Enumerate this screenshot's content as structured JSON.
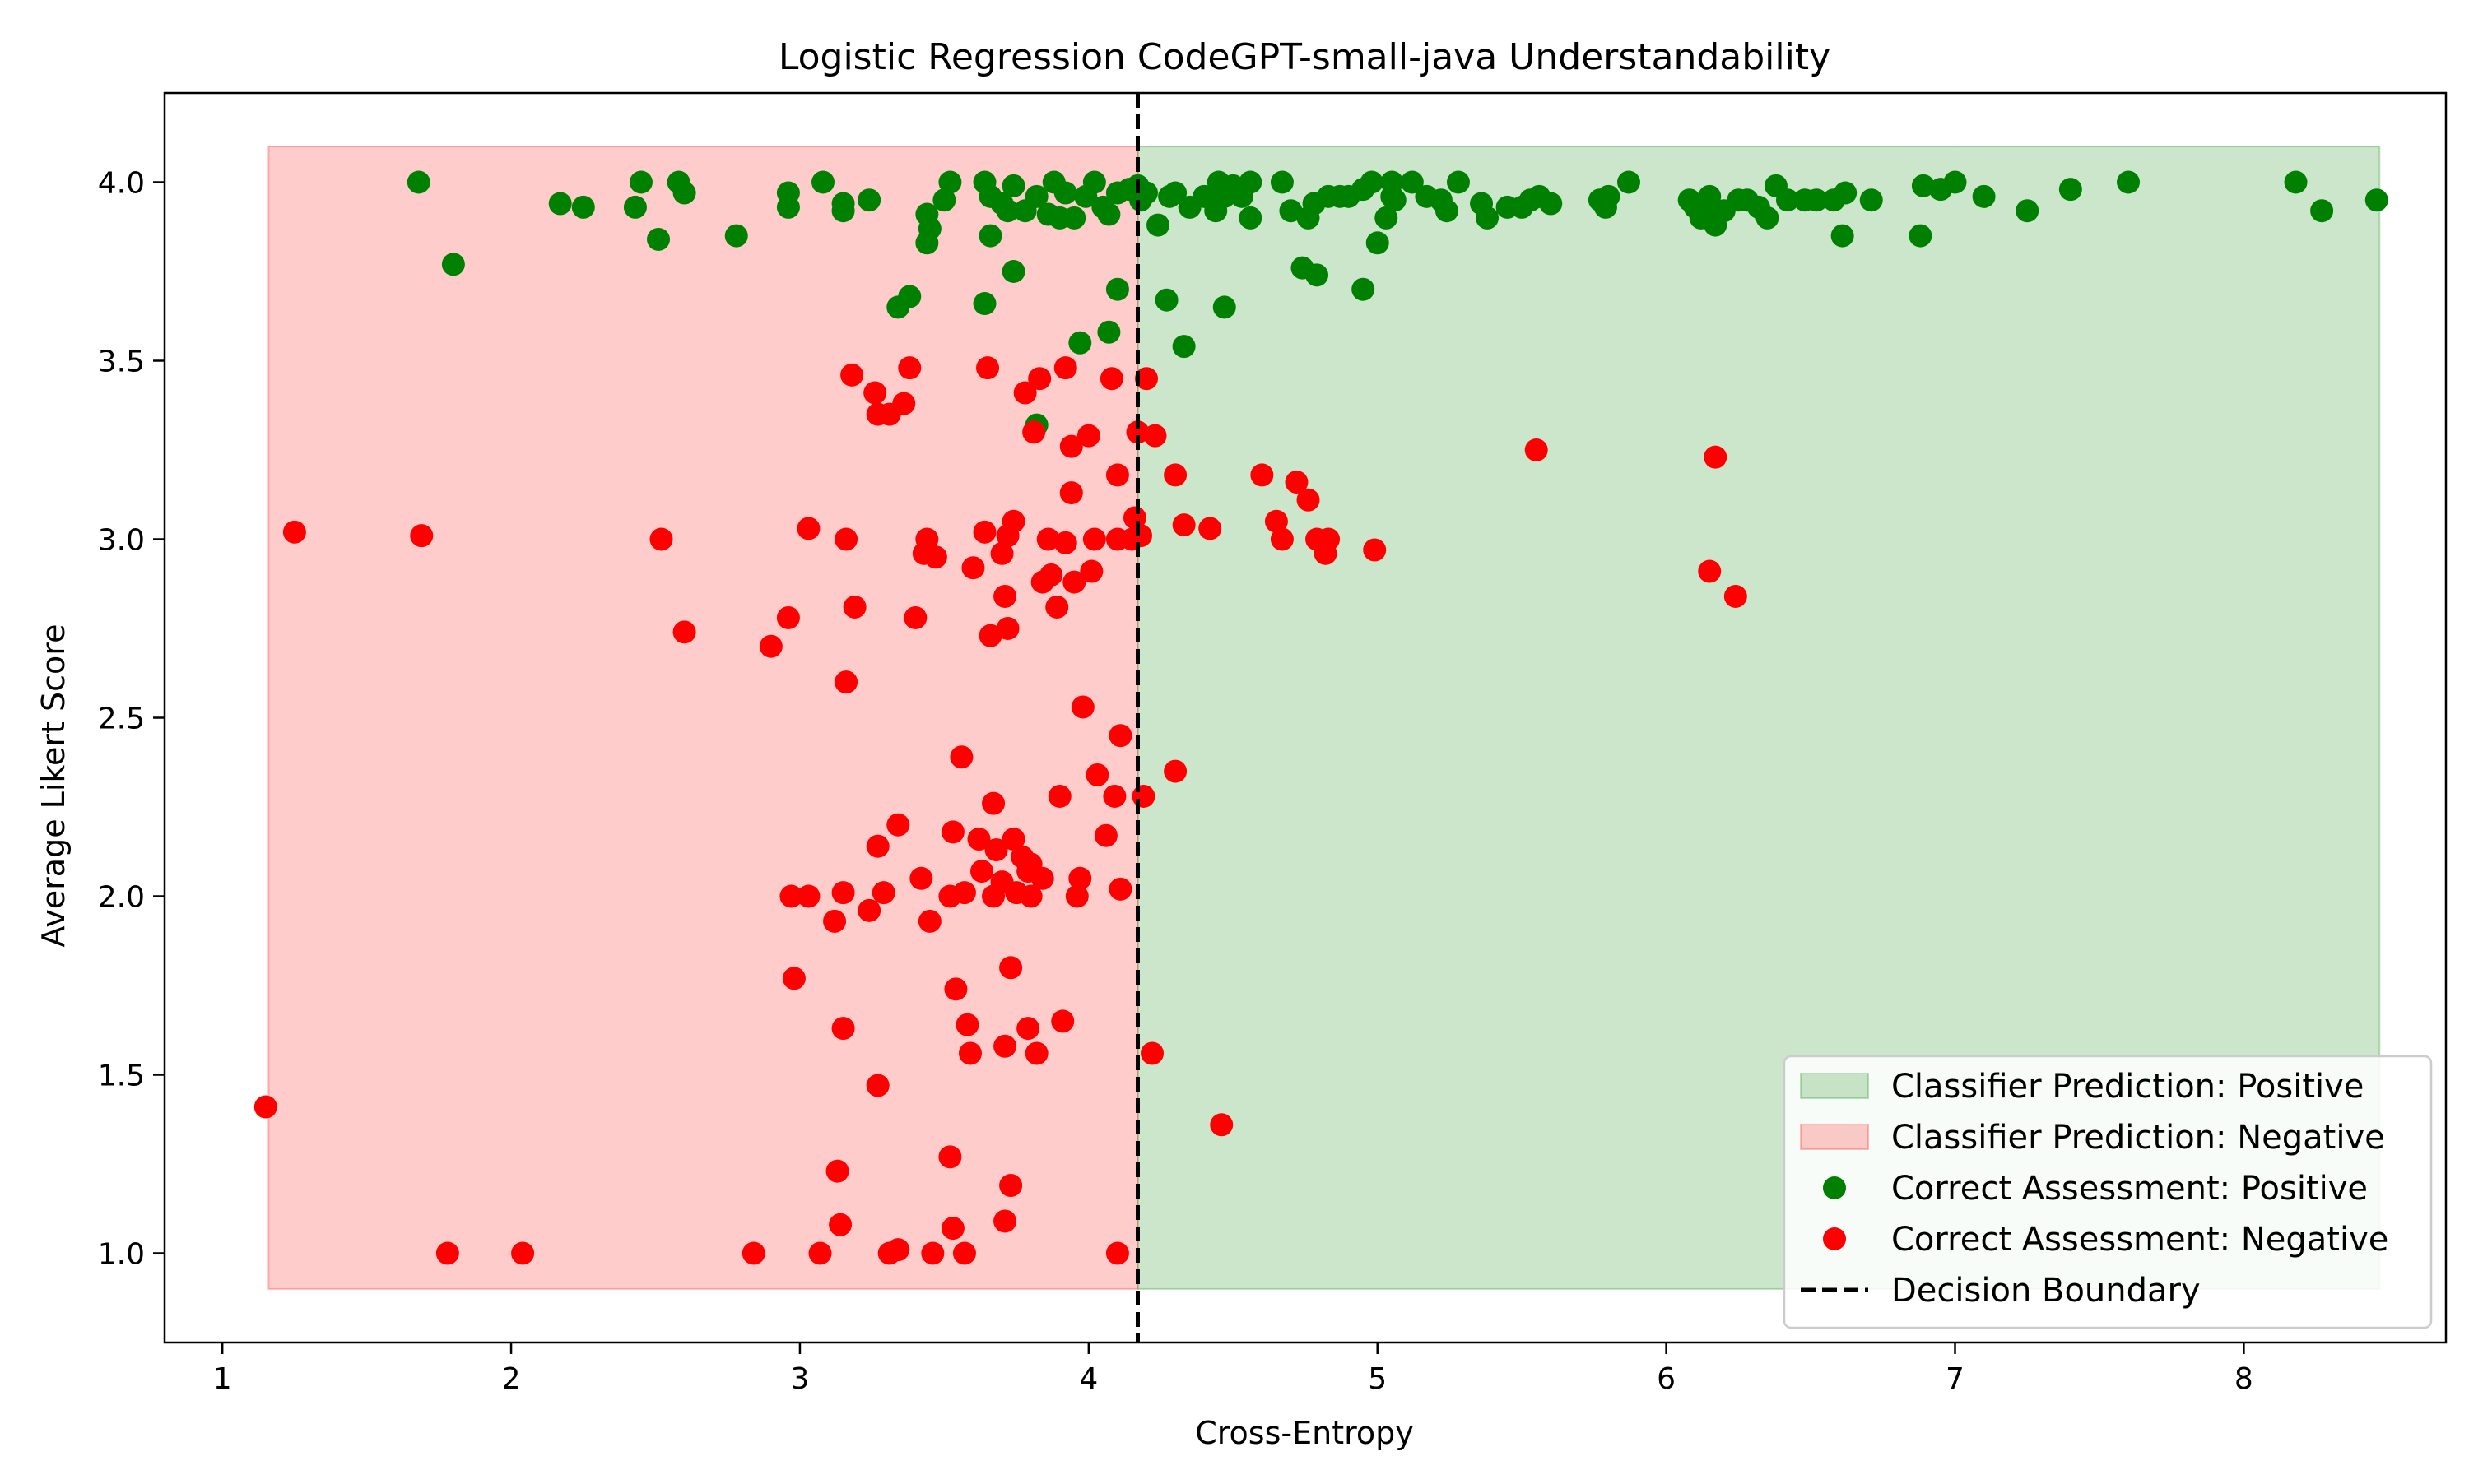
{
  "chart_data": {
    "type": "scatter",
    "title": "Logistic Regression CodeGPT-small-java Understandability",
    "xlabel": "Cross-Entropy",
    "ylabel": "Average Likert Score",
    "xlim": [
      0.8,
      8.7
    ],
    "ylim": [
      0.75,
      4.25
    ],
    "x_ticks": [
      1,
      2,
      3,
      4,
      5,
      6,
      7,
      8
    ],
    "x_tick_labels": [
      "1",
      "2",
      "3",
      "4",
      "5",
      "6",
      "7",
      "8"
    ],
    "y_ticks": [
      1.0,
      1.5,
      2.0,
      2.5,
      3.0,
      3.5,
      4.0
    ],
    "y_tick_labels": [
      "1.0",
      "1.5",
      "2.0",
      "2.5",
      "3.0",
      "3.5",
      "4.0"
    ],
    "grid": false,
    "legend_position": "bottom-right",
    "decision_boundary": 4.17,
    "regions": [
      {
        "name": "Classifier Prediction: Positive",
        "x_range": [
          4.17,
          8.47
        ],
        "y_range": [
          0.9,
          4.1
        ],
        "color": "#008000",
        "opacity": 0.2
      },
      {
        "name": "Classifier Prediction: Negative",
        "x_range": [
          1.16,
          4.17
        ],
        "y_range": [
          0.9,
          4.1
        ],
        "color": "#ff0000",
        "opacity": 0.2
      }
    ],
    "series": [
      {
        "name": "Correct Assessment: Positive",
        "color": "#008000",
        "points": [
          [
            1.68,
            4.0
          ],
          [
            1.8,
            3.77
          ],
          [
            2.17,
            3.94
          ],
          [
            2.25,
            3.93
          ],
          [
            2.43,
            3.93
          ],
          [
            2.45,
            4.0
          ],
          [
            2.51,
            3.84
          ],
          [
            2.58,
            4.0
          ],
          [
            2.6,
            3.97
          ],
          [
            2.78,
            3.85
          ],
          [
            2.96,
            3.97
          ],
          [
            2.96,
            3.93
          ],
          [
            3.08,
            4.0
          ],
          [
            3.15,
            3.94
          ],
          [
            3.15,
            3.92
          ],
          [
            3.24,
            3.95
          ],
          [
            3.34,
            3.65
          ],
          [
            3.38,
            3.68
          ],
          [
            3.44,
            3.91
          ],
          [
            3.44,
            3.83
          ],
          [
            3.45,
            3.87
          ],
          [
            3.5,
            3.95
          ],
          [
            3.52,
            4.0
          ],
          [
            3.64,
            4.0
          ],
          [
            3.64,
            3.66
          ],
          [
            3.66,
            3.85
          ],
          [
            3.66,
            3.96
          ],
          [
            3.7,
            3.94
          ],
          [
            3.72,
            3.92
          ],
          [
            3.74,
            3.99
          ],
          [
            3.74,
            3.75
          ],
          [
            3.78,
            3.92
          ],
          [
            3.82,
            3.96
          ],
          [
            3.82,
            3.32
          ],
          [
            3.86,
            3.91
          ],
          [
            3.88,
            4.0
          ],
          [
            3.9,
            3.9
          ],
          [
            3.92,
            3.97
          ],
          [
            3.95,
            3.9
          ],
          [
            3.97,
            3.55
          ],
          [
            3.99,
            3.96
          ],
          [
            4.02,
            4.0
          ],
          [
            4.05,
            3.93
          ],
          [
            4.07,
            3.58
          ],
          [
            4.07,
            3.91
          ],
          [
            4.1,
            3.97
          ],
          [
            4.1,
            3.7
          ],
          [
            4.14,
            3.98
          ],
          [
            4.17,
            3.99
          ],
          [
            4.18,
            3.95
          ],
          [
            4.2,
            3.97
          ],
          [
            4.24,
            3.88
          ],
          [
            4.27,
            3.67
          ],
          [
            4.28,
            3.96
          ],
          [
            4.3,
            3.97
          ],
          [
            4.33,
            3.54
          ],
          [
            4.35,
            3.93
          ],
          [
            4.4,
            3.96
          ],
          [
            4.44,
            3.92
          ],
          [
            4.45,
            4.0
          ],
          [
            4.47,
            3.96
          ],
          [
            4.47,
            3.65
          ],
          [
            4.5,
            3.99
          ],
          [
            4.53,
            3.96
          ],
          [
            4.56,
            3.9
          ],
          [
            4.56,
            4.0
          ],
          [
            4.67,
            4.0
          ],
          [
            4.7,
            3.92
          ],
          [
            4.74,
            3.76
          ],
          [
            4.76,
            3.9
          ],
          [
            4.78,
            3.94
          ],
          [
            4.79,
            3.74
          ],
          [
            4.83,
            3.96
          ],
          [
            4.87,
            3.96
          ],
          [
            4.9,
            3.96
          ],
          [
            4.95,
            3.7
          ],
          [
            4.95,
            3.98
          ],
          [
            4.98,
            4.0
          ],
          [
            5.0,
            3.83
          ],
          [
            5.03,
            3.9
          ],
          [
            5.05,
            3.96
          ],
          [
            5.06,
            3.95
          ],
          [
            5.05,
            4.0
          ],
          [
            5.12,
            4.0
          ],
          [
            5.17,
            3.96
          ],
          [
            5.22,
            3.95
          ],
          [
            5.24,
            3.92
          ],
          [
            5.28,
            4.0
          ],
          [
            5.36,
            3.94
          ],
          [
            5.38,
            3.9
          ],
          [
            5.45,
            3.93
          ],
          [
            5.5,
            3.93
          ],
          [
            5.53,
            3.95
          ],
          [
            5.56,
            3.96
          ],
          [
            5.6,
            3.94
          ],
          [
            5.77,
            3.95
          ],
          [
            5.79,
            3.93
          ],
          [
            5.8,
            3.96
          ],
          [
            5.87,
            4.0
          ],
          [
            6.08,
            3.95
          ],
          [
            6.1,
            3.93
          ],
          [
            6.12,
            3.9
          ],
          [
            6.15,
            3.93
          ],
          [
            6.15,
            3.96
          ],
          [
            6.17,
            3.88
          ],
          [
            6.2,
            3.92
          ],
          [
            6.25,
            3.95
          ],
          [
            6.28,
            3.95
          ],
          [
            6.32,
            3.93
          ],
          [
            6.35,
            3.9
          ],
          [
            6.38,
            3.99
          ],
          [
            6.42,
            3.95
          ],
          [
            6.48,
            3.95
          ],
          [
            6.52,
            3.95
          ],
          [
            6.58,
            3.95
          ],
          [
            6.61,
            3.85
          ],
          [
            6.62,
            3.97
          ],
          [
            6.71,
            3.95
          ],
          [
            6.88,
            3.85
          ],
          [
            6.89,
            3.99
          ],
          [
            6.95,
            3.98
          ],
          [
            7.0,
            4.0
          ],
          [
            7.1,
            3.96
          ],
          [
            7.25,
            3.92
          ],
          [
            7.4,
            3.98
          ],
          [
            7.6,
            4.0
          ],
          [
            8.18,
            4.0
          ],
          [
            8.27,
            3.92
          ],
          [
            8.46,
            3.95
          ]
        ]
      },
      {
        "name": "Correct Assessment: Negative",
        "color": "#ff0000",
        "points": [
          [
            1.15,
            1.41
          ],
          [
            1.25,
            3.02
          ],
          [
            1.69,
            3.01
          ],
          [
            1.78,
            1.0
          ],
          [
            2.04,
            1.0
          ],
          [
            2.52,
            3.0
          ],
          [
            2.6,
            2.74
          ],
          [
            2.84,
            1.0
          ],
          [
            2.9,
            2.7
          ],
          [
            2.96,
            2.78
          ],
          [
            2.97,
            2.0
          ],
          [
            2.98,
            1.77
          ],
          [
            3.03,
            3.03
          ],
          [
            3.03,
            2.0
          ],
          [
            3.07,
            1.0
          ],
          [
            3.12,
            1.93
          ],
          [
            3.13,
            1.23
          ],
          [
            3.14,
            1.08
          ],
          [
            3.15,
            1.63
          ],
          [
            3.15,
            2.01
          ],
          [
            3.16,
            3.0
          ],
          [
            3.16,
            2.6
          ],
          [
            3.18,
            3.46
          ],
          [
            3.19,
            2.81
          ],
          [
            3.24,
            1.96
          ],
          [
            3.26,
            3.41
          ],
          [
            3.27,
            1.47
          ],
          [
            3.27,
            3.35
          ],
          [
            3.27,
            2.14
          ],
          [
            3.29,
            2.01
          ],
          [
            3.31,
            3.35
          ],
          [
            3.31,
            1.0
          ],
          [
            3.34,
            2.2
          ],
          [
            3.34,
            1.01
          ],
          [
            3.36,
            3.38
          ],
          [
            3.38,
            3.48
          ],
          [
            3.4,
            2.78
          ],
          [
            3.42,
            2.05
          ],
          [
            3.43,
            2.96
          ],
          [
            3.44,
            3.0
          ],
          [
            3.45,
            1.93
          ],
          [
            3.46,
            1.0
          ],
          [
            3.47,
            2.95
          ],
          [
            3.52,
            1.27
          ],
          [
            3.52,
            2.0
          ],
          [
            3.53,
            1.07
          ],
          [
            3.53,
            2.18
          ],
          [
            3.54,
            1.74
          ],
          [
            3.56,
            2.39
          ],
          [
            3.57,
            1.0
          ],
          [
            3.57,
            2.01
          ],
          [
            3.58,
            1.64
          ],
          [
            3.59,
            1.56
          ],
          [
            3.6,
            2.92
          ],
          [
            3.62,
            2.16
          ],
          [
            3.63,
            2.07
          ],
          [
            3.64,
            3.02
          ],
          [
            3.65,
            3.48
          ],
          [
            3.66,
            2.73
          ],
          [
            3.67,
            2.26
          ],
          [
            3.67,
            2.0
          ],
          [
            3.68,
            2.13
          ],
          [
            3.7,
            2.96
          ],
          [
            3.7,
            2.04
          ],
          [
            3.71,
            2.84
          ],
          [
            3.71,
            1.09
          ],
          [
            3.71,
            1.58
          ],
          [
            3.72,
            2.75
          ],
          [
            3.72,
            3.01
          ],
          [
            3.73,
            1.8
          ],
          [
            3.73,
            1.19
          ],
          [
            3.74,
            2.16
          ],
          [
            3.74,
            3.05
          ],
          [
            3.75,
            2.01
          ],
          [
            3.77,
            2.11
          ],
          [
            3.78,
            3.41
          ],
          [
            3.79,
            2.07
          ],
          [
            3.79,
            1.63
          ],
          [
            3.8,
            2.0
          ],
          [
            3.8,
            2.09
          ],
          [
            3.81,
            3.3
          ],
          [
            3.82,
            1.56
          ],
          [
            3.83,
            3.45
          ],
          [
            3.84,
            2.05
          ],
          [
            3.84,
            2.88
          ],
          [
            3.86,
            3.0
          ],
          [
            3.87,
            2.9
          ],
          [
            3.89,
            2.81
          ],
          [
            3.9,
            2.28
          ],
          [
            3.91,
            1.65
          ],
          [
            3.92,
            2.99
          ],
          [
            3.92,
            3.48
          ],
          [
            3.94,
            3.13
          ],
          [
            3.94,
            3.26
          ],
          [
            3.95,
            2.88
          ],
          [
            3.96,
            2.0
          ],
          [
            3.97,
            2.05
          ],
          [
            3.98,
            2.53
          ],
          [
            4.0,
            3.29
          ],
          [
            4.01,
            2.91
          ],
          [
            4.02,
            3.0
          ],
          [
            4.03,
            2.34
          ],
          [
            4.06,
            2.17
          ],
          [
            4.08,
            3.45
          ],
          [
            4.09,
            2.28
          ],
          [
            4.1,
            3.18
          ],
          [
            4.1,
            1.0
          ],
          [
            4.1,
            3.0
          ],
          [
            4.11,
            2.45
          ],
          [
            4.11,
            2.02
          ],
          [
            4.15,
            3.0
          ],
          [
            4.16,
            3.06
          ],
          [
            4.17,
            3.3
          ],
          [
            4.18,
            3.01
          ],
          [
            4.19,
            2.28
          ],
          [
            4.2,
            3.45
          ],
          [
            4.22,
            1.56
          ],
          [
            4.23,
            3.29
          ],
          [
            4.3,
            2.35
          ],
          [
            4.3,
            3.18
          ],
          [
            4.33,
            3.04
          ],
          [
            4.42,
            3.03
          ],
          [
            4.46,
            1.36
          ],
          [
            4.6,
            3.18
          ],
          [
            4.65,
            3.05
          ],
          [
            4.67,
            3.0
          ],
          [
            4.72,
            3.16
          ],
          [
            4.76,
            3.11
          ],
          [
            4.79,
            3.0
          ],
          [
            4.82,
            2.96
          ],
          [
            4.83,
            3.0
          ],
          [
            4.99,
            2.97
          ],
          [
            5.55,
            3.25
          ],
          [
            6.15,
            2.91
          ],
          [
            6.17,
            3.23
          ],
          [
            6.24,
            2.84
          ]
        ]
      }
    ],
    "legend": [
      {
        "label": "Classifier Prediction: Positive",
        "kind": "patch",
        "color": "#008000"
      },
      {
        "label": "Classifier Prediction: Negative",
        "kind": "patch",
        "color": "#ff0000"
      },
      {
        "label": "Correct Assessment: Positive",
        "kind": "marker",
        "color": "#008000"
      },
      {
        "label": "Correct Assessment: Negative",
        "kind": "marker",
        "color": "#ff0000"
      },
      {
        "label": "Decision Boundary",
        "kind": "dashed-line",
        "color": "#000000"
      }
    ]
  }
}
